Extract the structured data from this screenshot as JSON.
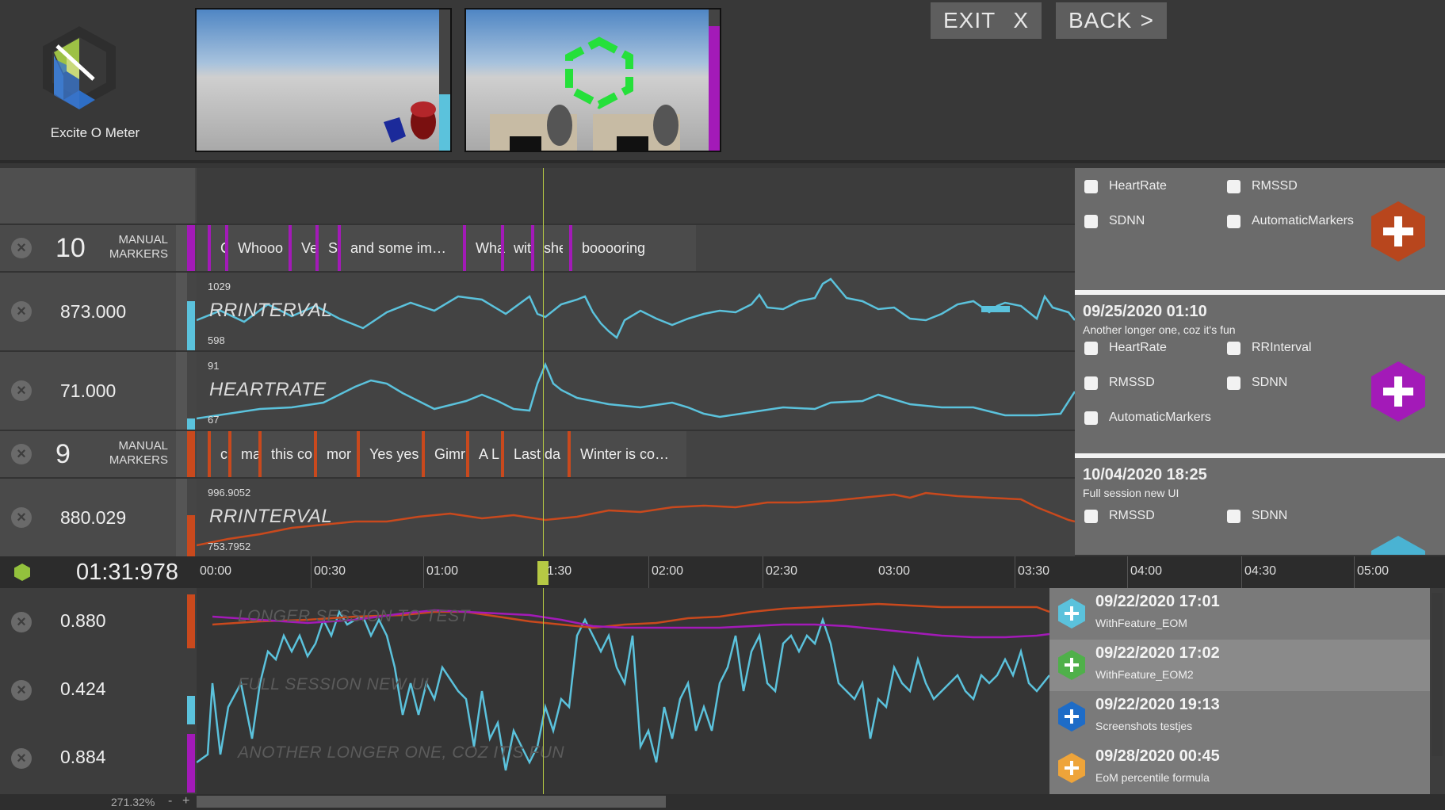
{
  "app": {
    "name": "Excite O Meter",
    "exit_label": "EXIT",
    "exit_icon": "X",
    "back_label": "BACK",
    "back_icon": ">",
    "colors": {
      "teal": "#5bc2dc",
      "magenta": "#a31ab8",
      "orange": "#c9491d",
      "yellow_cursor": "#b6c944",
      "green_hex": "#93c13d"
    }
  },
  "previews": [
    {
      "name": "scene-preview-1",
      "level_percent": 40
    },
    {
      "name": "scene-preview-2",
      "level_percent": 88
    }
  ],
  "tracks": [
    {
      "kind": "markers",
      "count": "10",
      "label_line1": "MANUAL",
      "label_line2": "MARKERS",
      "color": "#a31ab8",
      "markers": [
        "C",
        "Whooo",
        "Ve",
        "S",
        "and some im…",
        "Wha",
        "wit",
        "she",
        "booooring"
      ]
    },
    {
      "kind": "chart",
      "value": "873.000",
      "title": "RRINTERVAL",
      "max": "1029",
      "min": "598",
      "color": "#5bc2dc"
    },
    {
      "kind": "chart",
      "value": "71.000",
      "title": "HEARTRATE",
      "max": "91",
      "min": "67",
      "color": "#5bc2dc"
    },
    {
      "kind": "markers",
      "count": "9",
      "label_line1": "MANUAL",
      "label_line2": "MARKERS",
      "color": "#c9491d",
      "markers": [
        "c",
        "ma",
        "this co",
        "mor",
        "Yes yes",
        "Gimr",
        "A L",
        "Last da",
        "Winter is co…"
      ]
    },
    {
      "kind": "chart",
      "value": "880.029",
      "title": "RRINTERVAL",
      "max": "996.9052",
      "min": "753.7952",
      "color": "#c9491d"
    }
  ],
  "sessions": [
    {
      "date": "",
      "subtitle": "",
      "checks": [
        "HeartRate",
        "RMSSD",
        "SDNN",
        "AutomaticMarkers"
      ],
      "color": "#b8461d"
    },
    {
      "date": "09/25/2020 01:10",
      "subtitle": "Another longer one, coz it's fun",
      "checks": [
        "HeartRate",
        "RRInterval",
        "RMSSD",
        "SDNN",
        "AutomaticMarkers"
      ],
      "color": "#a31ab8"
    },
    {
      "date": "10/04/2020 18:25",
      "subtitle": "Full session new UI",
      "checks": [
        "RMSSD",
        "SDNN"
      ],
      "color": "#4ab3d3"
    }
  ],
  "ruler": {
    "current_time": "01:31:978",
    "ticks": [
      "00:00",
      "00:30",
      "01:00",
      "1:30",
      "02:00",
      "02:30",
      "03:00",
      "03:30",
      "04:00",
      "04:30",
      "05:00"
    ]
  },
  "bottom": {
    "rows": [
      {
        "value": "0.880",
        "title": "LONGER SESSION TO TEST",
        "color": "#c9491d"
      },
      {
        "value": "0.424",
        "title": "FULL SESSION NEW UI",
        "color": "#5bc2dc"
      },
      {
        "value": "0.884",
        "title": "ANOTHER LONGER ONE, COZ IT'S FUN",
        "color": "#a31ab8"
      }
    ]
  },
  "session_list": [
    {
      "date": "09/22/2020 17:01",
      "subtitle": "WithFeature_EOM",
      "color": "#5bc2dc"
    },
    {
      "date": "09/22/2020 17:02",
      "subtitle": "WithFeature_EOM2",
      "color": "#4fb04a"
    },
    {
      "date": "09/22/2020 19:13",
      "subtitle": "Screenshots testjes",
      "color": "#1e6cc7"
    },
    {
      "date": "09/28/2020 00:45",
      "subtitle": "EoM percentile formula",
      "color": "#eea43a"
    }
  ],
  "zoom": {
    "value": "271.32%",
    "minus": "-",
    "plus": "+"
  }
}
